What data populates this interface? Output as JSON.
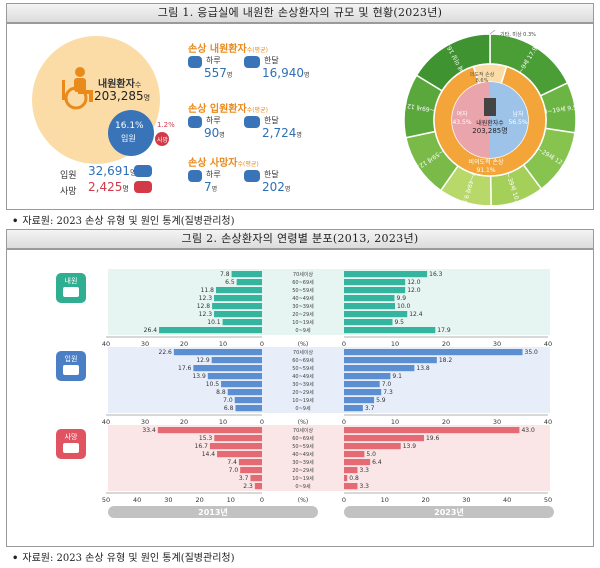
{
  "fig1": {
    "title": "그림 1. 응급실에 내원한 손상환자의 규모 및 현황(2023년)",
    "visits_label": "내원환자",
    "visits_suffix": "수",
    "visits_value": "203,285",
    "visits_unit": "명",
    "admit_pct": "16.1%",
    "admit_label": "입원",
    "death_pct": "1.2%",
    "death_label": "사망",
    "admit_count_label": "입원",
    "admit_count": "32,691",
    "admit_count_unit": "명",
    "death_count_label": "사망",
    "death_count": "2,425",
    "death_count_unit": "명",
    "stats": [
      {
        "title": "손상 내원환자",
        "suffix": "수(평균)",
        "day_label": "하루",
        "day_value": "557",
        "month_label": "한달",
        "month_value": "16,940",
        "unit": "명"
      },
      {
        "title": "손상 입원환자",
        "suffix": "수(평균)",
        "day_label": "하루",
        "day_value": "90",
        "month_label": "한달",
        "month_value": "2,724",
        "unit": "명"
      },
      {
        "title": "손상 사망자",
        "suffix": "수(평균)",
        "day_label": "하루",
        "day_value": "7",
        "month_label": "한달",
        "month_value": "202",
        "unit": "명"
      }
    ],
    "donut": {
      "center_label": "내원환자수",
      "center_value": "203,285",
      "center_unit": "명",
      "female_label": "여자",
      "female_pct": "43.5%",
      "male_label": "남자",
      "male_pct": "56.5%",
      "intentional_label": "의도적 손상",
      "intentional_pct": "8.6%",
      "unintentional_label": "비의도적 손상",
      "unintentional_pct": "91.1%",
      "other_note": "기타, 미상 0.3%",
      "age_groups": [
        {
          "label": "0~9세",
          "pct": "17.9%",
          "value": 17.9
        },
        {
          "label": "10~19세",
          "pct": "9.5%",
          "value": 9.5
        },
        {
          "label": "20~29세",
          "pct": "12.4%",
          "value": 12.4
        },
        {
          "label": "30~39세",
          "pct": "10.0%",
          "value": 10.0
        },
        {
          "label": "40~49세",
          "pct": "9.9%",
          "value": 9.9
        },
        {
          "label": "50~59세",
          "pct": "12.0%",
          "value": 12.0
        },
        {
          "label": "60~69세",
          "pct": "12.0%",
          "value": 12.0
        },
        {
          "label": "70세 이상",
          "pct": "16.3%",
          "value": 16.3
        }
      ]
    },
    "colors": {
      "orange": "#f3a53a",
      "peach": "#fbdca7",
      "blue": "#3a74b8",
      "red": "#d23a48",
      "green": "#53a83a",
      "lightgreen": "#d6e8a2"
    }
  },
  "source1": {
    "mark": "•",
    "text": "자료원: 2023 손상 유형 및 원인 통계(질병관리청)"
  },
  "fig2": {
    "title": "그림 2. 손상환자의 연령별 분포(2013, 2023년)",
    "unit_label": "(%)",
    "year_left": "2013년",
    "year_right": "2023년"
  },
  "source2": {
    "mark": "•",
    "text": "자료원: 2023 손상 유형 및 원인 통계(질병관리청)"
  },
  "chart_data": [
    {
      "type": "bar",
      "name": "내원",
      "categories": [
        "70세이상",
        "60~69세",
        "50~59세",
        "40~49세",
        "30~39세",
        "20~29세",
        "10~19세",
        "0~9세"
      ],
      "series": [
        {
          "name": "2013년",
          "values": [
            7.8,
            6.5,
            11.8,
            12.3,
            12.8,
            12.3,
            10.1,
            26.4
          ]
        },
        {
          "name": "2023년",
          "values": [
            16.3,
            12.0,
            12.0,
            9.9,
            10.0,
            12.4,
            9.5,
            17.9
          ]
        }
      ],
      "xlim": [
        0,
        40
      ],
      "ticks": [
        40,
        30,
        20,
        10,
        0
      ],
      "color_left": "#35b5a0",
      "color_right": "#35b5a0",
      "bg": "#e6f5f1"
    },
    {
      "type": "bar",
      "name": "입원",
      "categories": [
        "70세이상",
        "60~69세",
        "50~59세",
        "40~49세",
        "30~39세",
        "20~29세",
        "10~19세",
        "0~9세"
      ],
      "series": [
        {
          "name": "2013년",
          "values": [
            22.6,
            12.9,
            17.6,
            13.9,
            10.5,
            8.8,
            7.0,
            6.8
          ]
        },
        {
          "name": "2023년",
          "values": [
            35.0,
            18.2,
            13.8,
            9.1,
            7.0,
            7.3,
            5.9,
            3.7
          ]
        }
      ],
      "xlim": [
        0,
        40
      ],
      "ticks": [
        40,
        30,
        20,
        10,
        0
      ],
      "color_left": "#5b8fd1",
      "color_right": "#5b8fd1",
      "bg": "#e8eef9"
    },
    {
      "type": "bar",
      "name": "사망",
      "categories": [
        "70세이상",
        "60~69세",
        "50~59세",
        "40~49세",
        "30~39세",
        "20~29세",
        "10~19세",
        "0~9세"
      ],
      "series": [
        {
          "name": "2013년",
          "values": [
            33.4,
            15.3,
            16.7,
            14.4,
            7.4,
            7.0,
            3.7,
            2.3
          ]
        },
        {
          "name": "2023년",
          "values": [
            43.0,
            19.6,
            13.9,
            5.0,
            6.4,
            3.3,
            0.8,
            3.3
          ]
        }
      ],
      "xlim": [
        0,
        50
      ],
      "ticks": [
        50,
        40,
        30,
        20,
        10,
        0
      ],
      "color_left": "#e56a73",
      "color_right": "#e56a73",
      "bg": "#fbe6e7"
    }
  ]
}
